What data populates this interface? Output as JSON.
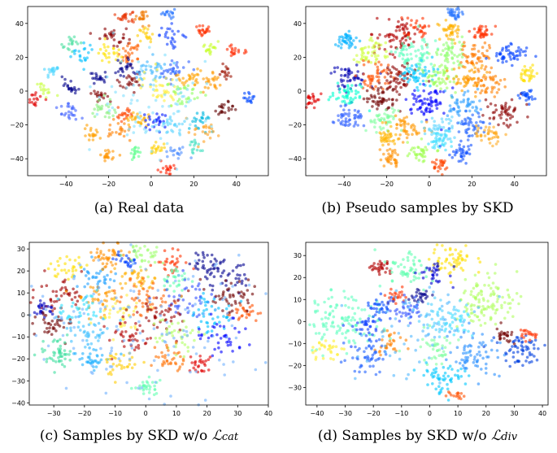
{
  "chart_data": [
    {
      "type": "scatter",
      "caption": "(a) Real data",
      "xticks": [
        -40,
        -20,
        0,
        20,
        40
      ],
      "yticks": [
        40,
        20,
        0,
        -20,
        -40
      ],
      "xlim": [
        -58,
        55
      ],
      "ylim": [
        -50,
        50
      ],
      "clusters": [
        {
          "x": 8,
          "y": 46,
          "r": 1.5,
          "n": 15,
          "color": "#1f6fff"
        },
        {
          "x": -12,
          "y": 44,
          "r": 2,
          "n": 22,
          "color": "#e83200"
        },
        {
          "x": -4,
          "y": 44,
          "r": 2,
          "n": 20,
          "color": "#f07800"
        },
        {
          "x": -18,
          "y": 33,
          "r": 3,
          "n": 30,
          "color": "#8b0000"
        },
        {
          "x": -38,
          "y": 28,
          "r": 2.5,
          "n": 18,
          "color": "#4be0a0"
        },
        {
          "x": -33,
          "y": 22,
          "r": 3,
          "n": 20,
          "color": "#00c0ff"
        },
        {
          "x": -46,
          "y": 12,
          "r": 2,
          "n": 18,
          "color": "#4bd6ff"
        },
        {
          "x": -3,
          "y": 33,
          "r": 2,
          "n": 18,
          "color": "#ffcc00"
        },
        {
          "x": 10,
          "y": 33,
          "r": 3,
          "n": 25,
          "color": "#1040ff"
        },
        {
          "x": 25,
          "y": 35,
          "r": 2,
          "n": 22,
          "color": "#ff3000"
        },
        {
          "x": -10,
          "y": 22,
          "r": 3,
          "n": 30,
          "color": "#ff6000"
        },
        {
          "x": -20,
          "y": 22,
          "r": 3,
          "n": 25,
          "color": "#ffe200"
        },
        {
          "x": 28,
          "y": 25,
          "r": 2,
          "n": 18,
          "color": "#c8ff30"
        },
        {
          "x": 40,
          "y": 24,
          "r": 2,
          "n": 18,
          "color": "#ff2a00"
        },
        {
          "x": -38,
          "y": 3,
          "r": 2,
          "n": 20,
          "color": "#00008b"
        },
        {
          "x": -50,
          "y": 1,
          "r": 2,
          "n": 15,
          "color": "#c8ff40"
        },
        {
          "x": -55,
          "y": -5,
          "r": 2,
          "n": 20,
          "color": "#e00000"
        },
        {
          "x": -25,
          "y": 8,
          "r": 2,
          "n": 20,
          "color": "#00008b"
        },
        {
          "x": -12,
          "y": 12,
          "r": 3,
          "n": 25,
          "color": "#00008b"
        },
        {
          "x": -10,
          "y": 5,
          "r": 3,
          "n": 22,
          "color": "#800000"
        },
        {
          "x": 0,
          "y": 12,
          "r": 4,
          "n": 35,
          "color": "#3ab4ff"
        },
        {
          "x": 10,
          "y": 12,
          "r": 4,
          "n": 30,
          "color": "#3060ff"
        },
        {
          "x": 18,
          "y": 8,
          "r": 3,
          "n": 25,
          "color": "#ffa400"
        },
        {
          "x": 28,
          "y": 6,
          "r": 3,
          "n": 25,
          "color": "#ff9800"
        },
        {
          "x": 35,
          "y": 12,
          "r": 2,
          "n": 15,
          "color": "#9b1000"
        },
        {
          "x": -25,
          "y": -2,
          "r": 2,
          "n": 18,
          "color": "#800000"
        },
        {
          "x": 5,
          "y": 2,
          "r": 5,
          "n": 40,
          "color": "#ffee40"
        },
        {
          "x": 15,
          "y": -2,
          "r": 4,
          "n": 30,
          "color": "#90ff60"
        },
        {
          "x": 35,
          "y": -10,
          "r": 3,
          "n": 22,
          "color": "#600000"
        },
        {
          "x": 46,
          "y": -4,
          "r": 2,
          "n": 15,
          "color": "#0048ff"
        },
        {
          "x": -38,
          "y": -12,
          "r": 3,
          "n": 25,
          "color": "#4060ff"
        },
        {
          "x": -22,
          "y": -12,
          "r": 3,
          "n": 25,
          "color": "#8af080"
        },
        {
          "x": -12,
          "y": -14,
          "r": 2,
          "n": 20,
          "color": "#ff4500"
        },
        {
          "x": -6,
          "y": -17,
          "r": 3,
          "n": 25,
          "color": "#ffb000"
        },
        {
          "x": 2,
          "y": -19,
          "r": 3,
          "n": 25,
          "color": "#0018ff"
        },
        {
          "x": 10,
          "y": -20,
          "r": 3,
          "n": 25,
          "color": "#5bd3ff"
        },
        {
          "x": 22,
          "y": -18,
          "r": 3,
          "n": 22,
          "color": "#00b8e0"
        },
        {
          "x": 26,
          "y": -24,
          "r": 3,
          "n": 22,
          "color": "#ffa020"
        },
        {
          "x": -15,
          "y": -24,
          "r": 3,
          "n": 22,
          "color": "#ff8000"
        },
        {
          "x": -27,
          "y": -26,
          "r": 2,
          "n": 18,
          "color": "#ffa000"
        },
        {
          "x": -20,
          "y": -38,
          "r": 2,
          "n": 20,
          "color": "#ff9500"
        },
        {
          "x": -8,
          "y": -36,
          "r": 2,
          "n": 18,
          "color": "#60ff90"
        },
        {
          "x": 3,
          "y": -35,
          "r": 2,
          "n": 18,
          "color": "#ffd000"
        },
        {
          "x": 12,
          "y": -36,
          "r": 2,
          "n": 18,
          "color": "#5090ff"
        },
        {
          "x": 20,
          "y": -33,
          "r": 2,
          "n": 15,
          "color": "#40e0c0"
        },
        {
          "x": 8,
          "y": -46,
          "r": 2,
          "n": 18,
          "color": "#ff2000"
        },
        {
          "x": 0,
          "y": -5,
          "r": 15,
          "n": 80,
          "color": "#80e0ff"
        }
      ]
    },
    {
      "type": "scatter",
      "caption": "(b) Pseudo samples by SKD",
      "xticks": [
        -40,
        -20,
        0,
        20,
        40
      ],
      "yticks": [
        40,
        20,
        0,
        -20,
        -40
      ],
      "xlim": [
        -58,
        55
      ],
      "ylim": [
        -50,
        50
      ],
      "clusters": [
        {
          "x": 12,
          "y": 46,
          "r": 2,
          "n": 30,
          "color": "#1f6fff"
        },
        {
          "x": -15,
          "y": 32,
          "r": 5,
          "n": 70,
          "color": "#b00000"
        },
        {
          "x": -5,
          "y": 38,
          "r": 3,
          "n": 30,
          "color": "#ff3000"
        },
        {
          "x": 10,
          "y": 36,
          "r": 3,
          "n": 40,
          "color": "#ffb000"
        },
        {
          "x": 25,
          "y": 35,
          "r": 2,
          "n": 35,
          "color": "#ff3000"
        },
        {
          "x": -40,
          "y": 30,
          "r": 3,
          "n": 40,
          "color": "#00b0ff"
        },
        {
          "x": -28,
          "y": 22,
          "r": 4,
          "n": 50,
          "color": "#d0ff40"
        },
        {
          "x": -8,
          "y": 22,
          "r": 5,
          "n": 70,
          "color": "#60ffc0"
        },
        {
          "x": 10,
          "y": 22,
          "r": 4,
          "n": 50,
          "color": "#90ff70"
        },
        {
          "x": 22,
          "y": 20,
          "r": 4,
          "n": 50,
          "color": "#ff7a00"
        },
        {
          "x": 38,
          "y": 22,
          "r": 4,
          "n": 50,
          "color": "#0040ff"
        },
        {
          "x": -38,
          "y": 8,
          "r": 4,
          "n": 50,
          "color": "#0000b0"
        },
        {
          "x": -25,
          "y": 8,
          "r": 4,
          "n": 50,
          "color": "#ff5000"
        },
        {
          "x": -15,
          "y": 8,
          "r": 4,
          "n": 50,
          "color": "#8b0000"
        },
        {
          "x": -5,
          "y": 10,
          "r": 4,
          "n": 55,
          "color": "#00c8ff"
        },
        {
          "x": 5,
          "y": 8,
          "r": 4,
          "n": 55,
          "color": "#a0ff60"
        },
        {
          "x": 18,
          "y": 8,
          "r": 4,
          "n": 50,
          "color": "#ffa000"
        },
        {
          "x": 28,
          "y": 5,
          "r": 4,
          "n": 45,
          "color": "#ff8000"
        },
        {
          "x": 46,
          "y": 10,
          "r": 2,
          "n": 30,
          "color": "#ffe000"
        },
        {
          "x": -55,
          "y": -5,
          "r": 2,
          "n": 25,
          "color": "#e00000"
        },
        {
          "x": -38,
          "y": -2,
          "r": 4,
          "n": 45,
          "color": "#00ffd0"
        },
        {
          "x": -22,
          "y": -5,
          "r": 4,
          "n": 50,
          "color": "#700000"
        },
        {
          "x": 0,
          "y": -8,
          "r": 5,
          "n": 70,
          "color": "#0000ff"
        },
        {
          "x": 15,
          "y": -8,
          "r": 4,
          "n": 50,
          "color": "#30a0ff"
        },
        {
          "x": 35,
          "y": -12,
          "r": 4,
          "n": 50,
          "color": "#8b0000"
        },
        {
          "x": 46,
          "y": -3,
          "r": 2,
          "n": 25,
          "color": "#0048ff"
        },
        {
          "x": -38,
          "y": -16,
          "r": 4,
          "n": 50,
          "color": "#3060ff"
        },
        {
          "x": -22,
          "y": -18,
          "r": 4,
          "n": 45,
          "color": "#80ffa0"
        },
        {
          "x": -10,
          "y": -22,
          "r": 4,
          "n": 45,
          "color": "#ff9800"
        },
        {
          "x": 5,
          "y": -22,
          "r": 4,
          "n": 45,
          "color": "#5dd5ff"
        },
        {
          "x": 20,
          "y": -20,
          "r": 4,
          "n": 45,
          "color": "#2060ff"
        },
        {
          "x": 28,
          "y": -26,
          "r": 3,
          "n": 40,
          "color": "#ffaa20"
        },
        {
          "x": -20,
          "y": -27,
          "r": 3,
          "n": 35,
          "color": "#ffb400"
        },
        {
          "x": -18,
          "y": -38,
          "r": 3,
          "n": 35,
          "color": "#ff9000"
        },
        {
          "x": -5,
          "y": -36,
          "r": 3,
          "n": 35,
          "color": "#a0ff50"
        },
        {
          "x": 5,
          "y": -30,
          "r": 3,
          "n": 35,
          "color": "#40e0ff"
        },
        {
          "x": 15,
          "y": -36,
          "r": 3,
          "n": 35,
          "color": "#1050ff"
        },
        {
          "x": 5,
          "y": -44,
          "r": 2,
          "n": 25,
          "color": "#ff4500"
        }
      ]
    },
    {
      "type": "scatter",
      "caption": "(c) Samples by SKD w/o ",
      "caption_math": "cat",
      "xticks": [
        -30,
        -20,
        -10,
        0,
        10,
        20,
        30,
        40
      ],
      "yticks": [
        30,
        20,
        10,
        0,
        -10,
        -20,
        -30,
        -40
      ],
      "xlim": [
        -38,
        40
      ],
      "ylim": [
        -41,
        33
      ],
      "clusters": [
        {
          "x": -12,
          "y": 27,
          "r": 3,
          "n": 45,
          "color": "#ff9000"
        },
        {
          "x": -6,
          "y": 25,
          "r": 2,
          "n": 25,
          "color": "#0040ff"
        },
        {
          "x": 0,
          "y": 27,
          "r": 3,
          "n": 35,
          "color": "#a0ff70"
        },
        {
          "x": 8,
          "y": 24,
          "r": 3,
          "n": 30,
          "color": "#ff3000"
        },
        {
          "x": 20,
          "y": 23,
          "r": 3,
          "n": 30,
          "color": "#00008b"
        },
        {
          "x": 27,
          "y": 18,
          "r": 4,
          "n": 40,
          "color": "#000090"
        },
        {
          "x": -25,
          "y": 22,
          "r": 3,
          "n": 30,
          "color": "#ffe000"
        },
        {
          "x": -16,
          "y": 16,
          "r": 3,
          "n": 35,
          "color": "#20a0ff"
        },
        {
          "x": -2,
          "y": 17,
          "r": 3,
          "n": 35,
          "color": "#ffb000"
        },
        {
          "x": 10,
          "y": 15,
          "r": 3,
          "n": 30,
          "color": "#60ffb0"
        },
        {
          "x": -28,
          "y": 10,
          "r": 4,
          "n": 45,
          "color": "#a00000"
        },
        {
          "x": -15,
          "y": 8,
          "r": 4,
          "n": 40,
          "color": "#ff9800"
        },
        {
          "x": 0,
          "y": 8,
          "r": 4,
          "n": 45,
          "color": "#ff6000"
        },
        {
          "x": 13,
          "y": 7,
          "r": 4,
          "n": 40,
          "color": "#3050ff"
        },
        {
          "x": 28,
          "y": 8,
          "r": 4,
          "n": 45,
          "color": "#700000"
        },
        {
          "x": -34,
          "y": 3,
          "r": 2,
          "n": 25,
          "color": "#0000c0"
        },
        {
          "x": -22,
          "y": 2,
          "r": 4,
          "n": 40,
          "color": "#30e0ff"
        },
        {
          "x": -8,
          "y": 0,
          "r": 4,
          "n": 40,
          "color": "#ffee40"
        },
        {
          "x": 5,
          "y": 0,
          "r": 4,
          "n": 40,
          "color": "#9b0000"
        },
        {
          "x": 20,
          "y": 0,
          "r": 4,
          "n": 40,
          "color": "#00c0ff"
        },
        {
          "x": 32,
          "y": 1,
          "r": 2,
          "n": 25,
          "color": "#ff5000"
        },
        {
          "x": -30,
          "y": -5,
          "r": 3,
          "n": 35,
          "color": "#700000"
        },
        {
          "x": -18,
          "y": -8,
          "r": 4,
          "n": 40,
          "color": "#40c0ff"
        },
        {
          "x": -5,
          "y": -10,
          "r": 4,
          "n": 40,
          "color": "#b00000"
        },
        {
          "x": 10,
          "y": -9,
          "r": 4,
          "n": 40,
          "color": "#b0ff60"
        },
        {
          "x": 25,
          "y": -10,
          "r": 4,
          "n": 40,
          "color": "#0000ff"
        },
        {
          "x": -30,
          "y": -18,
          "r": 4,
          "n": 50,
          "color": "#40e0a0"
        },
        {
          "x": -18,
          "y": -20,
          "r": 3,
          "n": 35,
          "color": "#20b0ff"
        },
        {
          "x": -8,
          "y": -22,
          "r": 3,
          "n": 30,
          "color": "#ffcc00"
        },
        {
          "x": 8,
          "y": -20,
          "r": 3,
          "n": 35,
          "color": "#ff7000"
        },
        {
          "x": 18,
          "y": -23,
          "r": 2,
          "n": 25,
          "color": "#e00000"
        },
        {
          "x": 0,
          "y": -33,
          "r": 2,
          "n": 30,
          "color": "#60ffb0"
        },
        {
          "x": 0,
          "y": -3,
          "r": 20,
          "n": 150,
          "color": "#70b0ff"
        }
      ]
    },
    {
      "type": "scatter",
      "caption": "(d) Samples by SKD w/o ",
      "caption_math": "div",
      "xticks": [
        -40,
        -30,
        -20,
        -10,
        0,
        10,
        20,
        30,
        40
      ],
      "yticks": [
        30,
        20,
        10,
        0,
        -10,
        -20,
        -30
      ],
      "xlim": [
        -44,
        42
      ],
      "ylim": [
        -38,
        36
      ],
      "clusters": [
        {
          "x": 8,
          "y": 28,
          "r": 4,
          "n": 60,
          "color": "#ffe000"
        },
        {
          "x": -17,
          "y": 24,
          "r": 2,
          "n": 30,
          "color": "#b00000"
        },
        {
          "x": -8,
          "y": 24,
          "r": 4,
          "n": 55,
          "color": "#60ffb0"
        },
        {
          "x": 2,
          "y": 22,
          "r": 3,
          "n": 30,
          "color": "#0000d0"
        },
        {
          "x": 20,
          "y": 10,
          "r": 6,
          "n": 110,
          "color": "#b0ff60"
        },
        {
          "x": -12,
          "y": 12,
          "r": 2,
          "n": 25,
          "color": "#ff3000"
        },
        {
          "x": -3,
          "y": 12,
          "r": 2,
          "n": 25,
          "color": "#00008b"
        },
        {
          "x": -32,
          "y": 0,
          "r": 7,
          "n": 120,
          "color": "#60ffc0"
        },
        {
          "x": -18,
          "y": 7,
          "r": 3,
          "n": 30,
          "color": "#0048ff"
        },
        {
          "x": -8,
          "y": 5,
          "r": 3,
          "n": 35,
          "color": "#3050ff"
        },
        {
          "x": 3,
          "y": 2,
          "r": 4,
          "n": 40,
          "color": "#50d0ff"
        },
        {
          "x": 10,
          "y": 0,
          "r": 3,
          "n": 30,
          "color": "#40e0ff"
        },
        {
          "x": -22,
          "y": -2,
          "r": 3,
          "n": 35,
          "color": "#1040ff"
        },
        {
          "x": -15,
          "y": -10,
          "r": 3,
          "n": 30,
          "color": "#ff8000"
        },
        {
          "x": 2,
          "y": -12,
          "r": 4,
          "n": 40,
          "color": "#80ffa0"
        },
        {
          "x": 15,
          "y": -15,
          "r": 5,
          "n": 70,
          "color": "#2a90ff"
        },
        {
          "x": 32,
          "y": -13,
          "r": 4,
          "n": 60,
          "color": "#0040e0"
        },
        {
          "x": 26,
          "y": -6,
          "r": 2,
          "n": 25,
          "color": "#700000"
        },
        {
          "x": -22,
          "y": -15,
          "r": 4,
          "n": 50,
          "color": "#2060ff"
        },
        {
          "x": -36,
          "y": -12,
          "r": 3,
          "n": 30,
          "color": "#ffee30"
        },
        {
          "x": 5,
          "y": -26,
          "r": 4,
          "n": 55,
          "color": "#00c8ff"
        },
        {
          "x": 10,
          "y": -34,
          "r": 1.5,
          "n": 15,
          "color": "#ff5000"
        },
        {
          "x": 35,
          "y": -6,
          "r": 2,
          "n": 20,
          "color": "#ff3000"
        },
        {
          "x": -5,
          "y": -5,
          "r": 12,
          "n": 70,
          "color": "#50b8ff"
        }
      ]
    }
  ]
}
